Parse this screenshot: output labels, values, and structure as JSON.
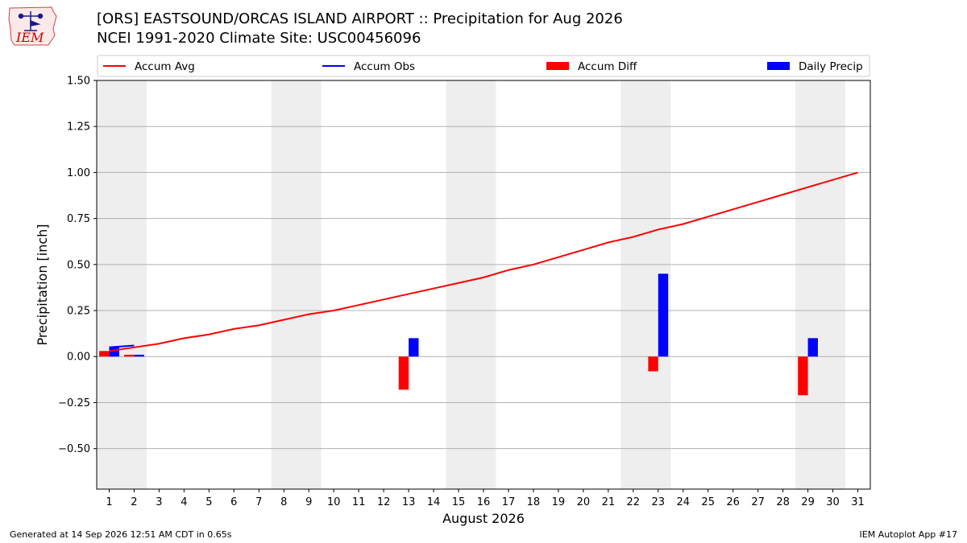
{
  "header": {
    "logo_text": "IEM",
    "title": "[ORS] EASTSOUND/ORCAS ISLAND AIRPORT :: Precipitation for Aug 2026",
    "subtitle": "NCEI 1991-2020 Climate Site: USC00456096"
  },
  "footer": {
    "generated": "Generated at 14 Sep 2026 12:51 AM CDT in 0.65s",
    "app": "IEM Autoplot App #17"
  },
  "colors": {
    "avg": "#ff0000",
    "obs": "#0000ff",
    "diff": "#ff0000",
    "daily": "#0000ff",
    "weekend_band": "#eeeeee",
    "grid": "#b0b0b0"
  },
  "chart_data": {
    "type": "bar",
    "xlabel": "August 2026",
    "ylabel": "Precipitation [inch]",
    "ylim": [
      -0.72,
      1.5
    ],
    "xlim": [
      0.5,
      31.5
    ],
    "x": [
      1,
      2,
      3,
      4,
      5,
      6,
      7,
      8,
      9,
      10,
      11,
      12,
      13,
      14,
      15,
      16,
      17,
      18,
      19,
      20,
      21,
      22,
      23,
      24,
      25,
      26,
      27,
      28,
      29,
      30,
      31
    ],
    "yticks": [
      1.5,
      1.25,
      1.0,
      0.75,
      0.5,
      0.25,
      0.0,
      -0.25,
      -0.5
    ],
    "ytick_labels": [
      "1.50",
      "1.25",
      "1.00",
      "0.75",
      "0.50",
      "0.25",
      "0.00",
      "−0.25",
      "−0.50"
    ],
    "grid": true,
    "legend_position": "top",
    "weekend_bands": [
      [
        0.5,
        2.5
      ],
      [
        7.5,
        9.5
      ],
      [
        14.5,
        16.5
      ],
      [
        21.5,
        23.5
      ],
      [
        28.5,
        30.5
      ]
    ],
    "series": [
      {
        "name": "Accum Avg",
        "kind": "line",
        "values": [
          0.03,
          0.05,
          0.07,
          0.1,
          0.12,
          0.15,
          0.17,
          0.2,
          0.23,
          0.25,
          0.28,
          0.31,
          0.34,
          0.37,
          0.4,
          0.43,
          0.47,
          0.5,
          0.54,
          0.58,
          0.62,
          0.65,
          0.69,
          0.72,
          0.76,
          0.8,
          0.84,
          0.88,
          0.92,
          0.96,
          1.0
        ]
      },
      {
        "name": "Accum Obs",
        "kind": "line",
        "x": [
          1,
          2
        ],
        "values": [
          0.05,
          0.06
        ]
      },
      {
        "name": "Accum Diff",
        "kind": "bar",
        "values": [
          0.03,
          0.01,
          0,
          0,
          0,
          0,
          0,
          0,
          0,
          0,
          0,
          0,
          -0.18,
          0,
          0,
          0,
          0,
          0,
          0,
          0,
          0,
          0,
          -0.08,
          0,
          0,
          0,
          0,
          0,
          -0.21,
          0,
          0
        ]
      },
      {
        "name": "Daily Precip",
        "kind": "bar",
        "values": [
          0.05,
          0.01,
          0,
          0,
          0,
          0,
          0,
          0,
          0,
          0,
          0,
          0,
          0.1,
          0,
          0,
          0,
          0,
          0,
          0,
          0,
          0,
          0,
          0.45,
          0,
          0,
          0,
          0,
          0,
          0.1,
          0,
          0
        ]
      }
    ]
  }
}
